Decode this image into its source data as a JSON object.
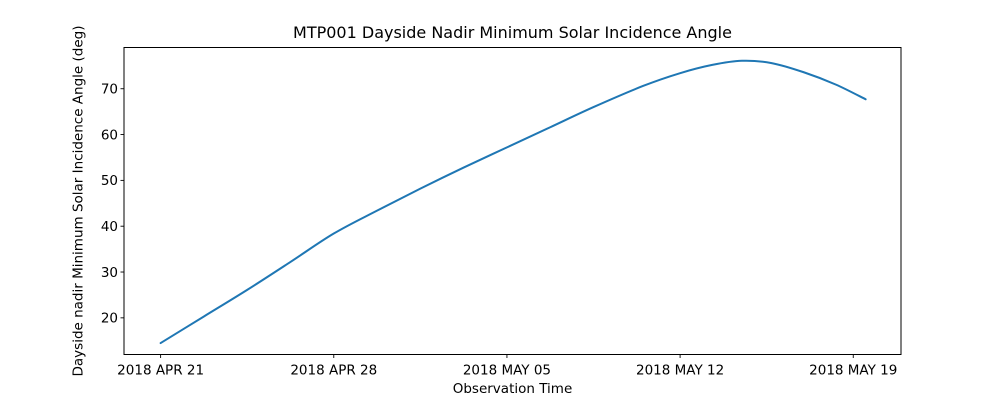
{
  "page": {
    "background_color": "#ffffff"
  },
  "chart": {
    "title": "MTP001 Dayside Nadir Minimum Solar Incidence Angle",
    "xlabel": "Observation Time",
    "ylabel": "Dayside nadir Minimum Solar Incidence Angle (deg)",
    "line_color": "#1f77b4",
    "axis_color": "#000000",
    "chart_data": {
      "type": "line",
      "title": "MTP001 Dayside Nadir Minimum Solar Incidence Angle",
      "xlabel": "Observation Time",
      "ylabel": "Dayside nadir Minimum Solar Incidence Angle (deg)",
      "series_name": "Dayside nadir minimum solar incidence angle",
      "x_unit": "days since 2018 APR 21 00:00 UTC",
      "x": [
        0,
        1.75,
        3.5,
        5.25,
        7,
        8.75,
        10.5,
        12.25,
        14,
        15.75,
        17.5,
        19.5,
        21,
        22.3,
        23.5,
        24.7,
        26,
        27.3,
        28.5
      ],
      "values": [
        14.5,
        20.3,
        26.1,
        32.2,
        38.4,
        43.4,
        48.2,
        52.8,
        57.2,
        61.6,
        66.0,
        70.6,
        73.4,
        75.2,
        76.1,
        75.6,
        73.6,
        70.9,
        67.7
      ],
      "peak": {
        "day": 23.5,
        "value": 76.1,
        "approx_date": "2018 MAY 14"
      },
      "x_ticks": {
        "labels": [
          "2018 APR 21",
          "2018 APR 28",
          "2018 MAY 05",
          "2018 MAY 12",
          "2018 MAY 19"
        ],
        "days": [
          0,
          7,
          14,
          21,
          28
        ]
      },
      "y_ticks": [
        20,
        30,
        40,
        50,
        60,
        70
      ],
      "xlim_days": [
        -1.48,
        29.93
      ],
      "ylim": [
        12.0,
        79.0
      ],
      "grid": false,
      "legend": "none"
    }
  }
}
